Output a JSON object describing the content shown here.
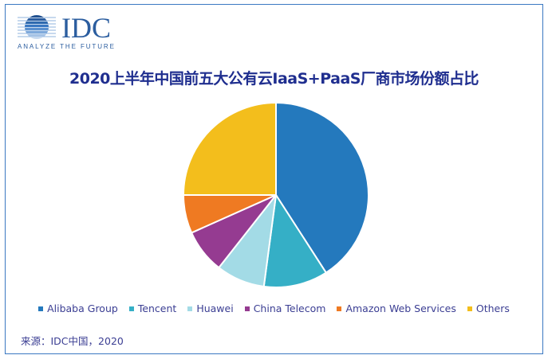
{
  "logo": {
    "brand": "IDC",
    "tagline": "ANALYZE THE FUTURE",
    "color": "#2b5d9f"
  },
  "chart_data": {
    "type": "pie",
    "title": "2020上半年中国前五大公有云IaaS+PaaS厂商市场份额占比",
    "categories": [
      "Alibaba Group",
      "Tencent",
      "Huawei",
      "China Telecom",
      "Amazon Web Services",
      "Others"
    ],
    "values": [
      40.9,
      11.2,
      8.5,
      7.7,
      6.7,
      25.0
    ],
    "unit": "%",
    "colors": [
      "#2479bd",
      "#35afc6",
      "#a3dbe6",
      "#953b91",
      "#ef7a22",
      "#f3be1c"
    ],
    "start_angle": "12 o'clock, clockwise",
    "legend_position": "bottom",
    "data_labels": false
  },
  "legend": {
    "items": [
      {
        "label": "Alibaba Group",
        "color": "#2479bd"
      },
      {
        "label": "Tencent",
        "color": "#35afc6"
      },
      {
        "label": "Huawei",
        "color": "#a3dbe6"
      },
      {
        "label": "China Telecom",
        "color": "#953b91"
      },
      {
        "label": "Amazon Web Services",
        "color": "#ef7a22"
      },
      {
        "label": "Others",
        "color": "#f3be1c"
      }
    ]
  },
  "source": "来源：IDC中国，2020"
}
